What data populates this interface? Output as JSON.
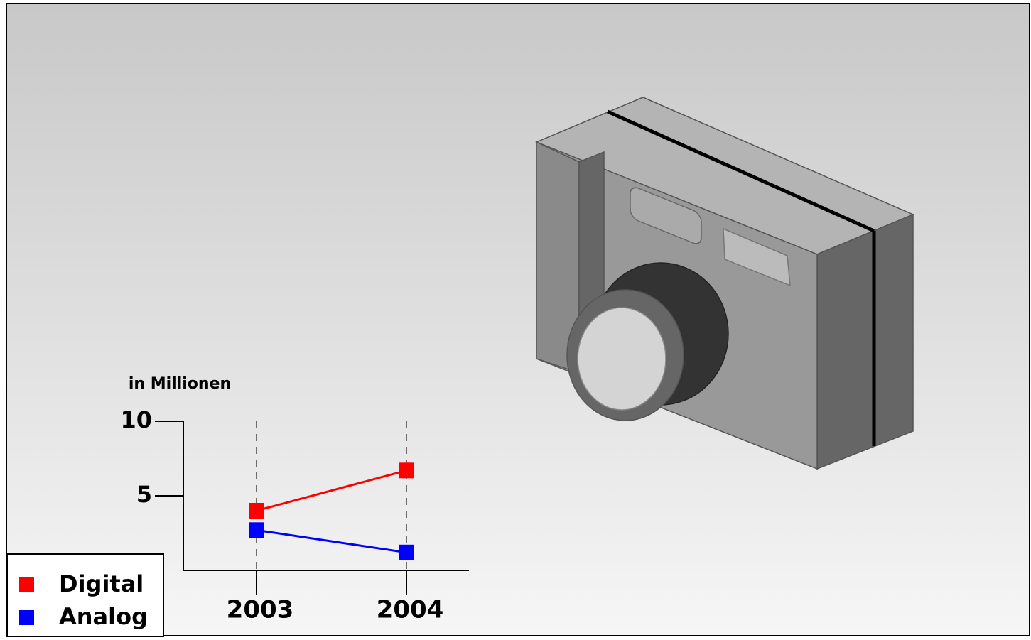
{
  "chart_data": {
    "type": "line",
    "y_label": "in Millionen",
    "categories": [
      "2003",
      "2004"
    ],
    "series": [
      {
        "name": "Digital",
        "color": "#ff0000",
        "values": [
          4,
          6.7
        ]
      },
      {
        "name": "Analog",
        "color": "#0000ff",
        "values": [
          2.7,
          1.2
        ]
      }
    ],
    "ylim": [
      0,
      10
    ],
    "yticks": [
      5,
      10
    ],
    "legend": "bottom-left"
  }
}
